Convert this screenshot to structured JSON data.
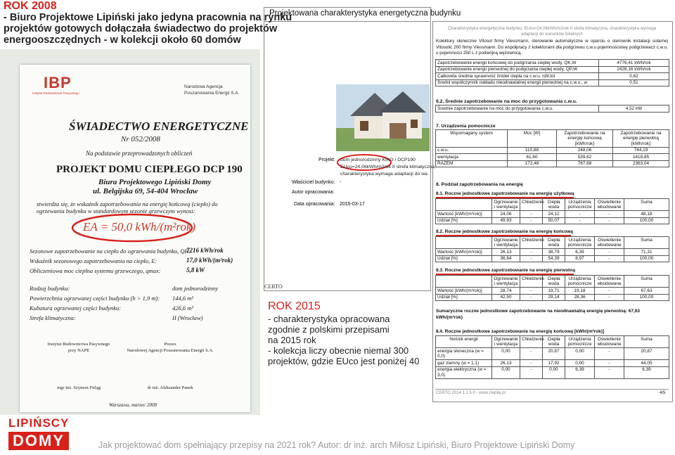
{
  "left_title": {
    "lead": "ROK 2008",
    "lines": [
      "- Biuro Projektowe Lipiński jako jedyna pracownia na rynku",
      "projektów gotowych dołączała świadectwo do projektów",
      "energooszczędnych - w kolekcji około 60 domów"
    ]
  },
  "certificate": {
    "ibp": "IBP",
    "ibp_name": "Instytut Budownictwa Pasywnego",
    "agency": [
      "Narodowa Agencja",
      "Poszanowania Energii S.A."
    ],
    "title": "ŚWIADECTWO ENERGETYCZNE",
    "number": "Nr 052/2008",
    "basis": "Na podstawie przeprowadzonych obliczeń",
    "project": "PROJEKT DOMU CIEPŁEGO DCP 190",
    "office": "Biura Projektowego Lipiński Domy",
    "address": "ul. Belgijska 69, 54-404 Wrocław",
    "statement": "stwierdza się, że wskaźnik zapotrzebowania na energię końcową (ciepło) do ogrzewania budynku w standardowym sezonie grzewczym wynosi:",
    "indicator": "EA = 50,0 kWh/(m²rok)",
    "params": [
      [
        "Sezonowe zapotrzebowanie na ciepło do ogrzewania budynku, QH:",
        "7216 kWh/rok"
      ],
      [
        "Wskaźnik sezonowego zapotrzebowania na ciepło, E:",
        "17,0 kWh/(m²rok)"
      ],
      [
        "Obliczeniowa moc cieplna systemu grzewczego, qmax:",
        "5,8 kW"
      ]
    ],
    "building": [
      [
        "Rodzaj budynku:",
        "dom jednorodzinny"
      ],
      [
        "Powierzchnia ogrzewanej części budynku (h > 1,9 m):",
        "144,6 m²"
      ],
      [
        "Kubatura ogrzewanej części budynku:",
        "426,6 m³"
      ],
      [
        "Strefa klimatyczna:",
        "II (Wrocław)"
      ]
    ],
    "signers": [
      {
        "org": [
          "Instytut Budownictwa Pasywnego",
          "przy NAPE"
        ],
        "name": "mgr inż. Szymon Firląg"
      },
      {
        "org": [
          "Prezes",
          "Narodowej Agencji Poszanowania Energii S.A."
        ],
        "name": "dr inż. Aleksander Panek"
      }
    ],
    "date": "Warszawa, marzec 2008"
  },
  "middle_doc": {
    "heading": "Projektowana charakterystyka energetyczna budynku",
    "project_label": "Projekt:",
    "project_lines": [
      "dom jednorodzinny KIKO / DCP190",
      "EUco=24,06kWh/m2rok II strefa klimatyczna,",
      "charakterystyka wymaga adaptacji do wa"
    ],
    "owner_label": "Właściciel budynku:",
    "owner_value": "-",
    "author_label": "Autor opracowania:",
    "date_label": "Data opracowania:",
    "date_value": "2015-03-17",
    "certo": "CERTO"
  },
  "rok2015": {
    "lead": "ROK 2015",
    "lines": [
      "- charakterystyka opracowana",
      "zgodnie z polskimi przepisami",
      "na 2015 rok",
      "- kolekcja liczy obecnie niemal 300",
      "projektów, gdzie EUco jest poniżej 40"
    ]
  },
  "right_doc": {
    "header": "Charakterystyka energetyczna budynku: EUco=24,06kWh/m2rok II strefa klimatyczna, charakterystyka wymaga adaptacji do warunków lokalnych",
    "intro": "Kolektory słoneczne Vitosol firmy Viessmann, sterowanie automatyczne w oparciu o sterownik instalacji solarnej Vitosolic 200 firmy Viessmann. Do współpracy z kolektorami dla podgrzewu c.w.u pojemnościowy podgrzewacz c.w.u. o pojemności 250 L z podwójną wężownicą.",
    "table1": [
      [
        "Zapotrzebowanie energii końcowej do podgrzania ciepłej wody, QK,W",
        "4776,41 kWh/rok"
      ],
      [
        "Zapotrzebowanie energii pierwotnej do podgrzania ciepłej wody, QP,W",
        "2428,16 kWh/rok"
      ],
      [
        "Całkowita średnia sprawność źródeł ciepła na c.w.u. ηW,tot",
        "0,62"
      ],
      [
        "Średni współczynnik nakładu nieodnawialnej energii pierwotnej na c.w.u., w",
        "0,51"
      ]
    ],
    "s62": {
      "title": "6.2. Średnie zapotrzebowanie na moc do przygotowania c.w.u.",
      "rows": [
        [
          "Średnie zapotrzebowanie na moc do przygotowania c.w.u.",
          "4,52 kW"
        ]
      ]
    },
    "s7": {
      "title": "7. Urządzenia pomocnicze",
      "header": [
        "Wspomagany system",
        "Moc [W]",
        "Zapotrzebowanie na energię końcową [kWh/rok]",
        "Zapotrzebowanie na energię pierwotną [kWh/rok]"
      ],
      "rows": [
        [
          "c.w.u.",
          "110,88",
          "248,06",
          "744,19"
        ],
        [
          "wentylacja",
          "61,60",
          "539,62",
          "1618,85"
        ],
        [
          "RAZEM",
          "172,48",
          "787,68",
          "2363,04"
        ]
      ]
    },
    "s8": "8. Podział zapotrzebowania na energię",
    "cols8": [
      "Ogrzewanie i wentylacja",
      "Chłodzenie",
      "Ciepła woda",
      "Urządzenia pomocnicze",
      "Oświetlenie wbudowane",
      "Suma"
    ],
    "s81": {
      "title": "8.1. Roczne jednostkowe zapotrzebowanie na energię użytkową",
      "rows": [
        [
          "Wartość [kWh/(m²rok)]",
          "24,06",
          "-",
          "24,12",
          "-",
          "-",
          "48,18"
        ],
        [
          "Udział [%]",
          "49,93",
          "-",
          "50,07",
          "-",
          "-",
          "100,00"
        ]
      ]
    },
    "s82": {
      "title": "8.2. Roczne jednostkowe zapotrzebowanie na energię końcową",
      "rows": [
        [
          "Wartość [kWh/(m²rok)]",
          "26,13",
          "-",
          "38,79",
          "6,39",
          "-",
          "71,31"
        ],
        [
          "Udział [%]",
          "36,64",
          "-",
          "54,39",
          "8,97",
          "-",
          "100,00"
        ]
      ]
    },
    "s83": {
      "title": "8.3. Roczne jednostkowe zapotrzebowanie na energię pierwotną",
      "rows": [
        [
          "Wartość [kWh/(m²rok)]",
          "28,74",
          "-",
          "19,71",
          "19,18",
          "-",
          "67,63"
        ],
        [
          "Udział [%]",
          "42,50",
          "-",
          "29,14",
          "28,36",
          "-",
          "100,00"
        ]
      ]
    },
    "summary": "Sumaryczne roczne jednostkowe zapotrzebowanie na nieodnawialną energię pierwotną: 67,63 kWh/(m²rok)",
    "s84": {
      "title": "8.4. Roczne jednostkowe zapotrzebowanie na energię końcową [kWh/(m²rok)]",
      "header": [
        "Nośnik energii",
        "Ogrzewanie i wentylacja",
        "Chłodzenie",
        "Ciepła woda",
        "Urządzenia pomocnicze",
        "Oświetlenie wbudowane",
        "Suma"
      ],
      "rows": [
        [
          "energia słoneczna (w = 0,0)",
          "0,00",
          "-",
          "20,87",
          "0,00",
          "-",
          "20,87"
        ],
        [
          "gaz ziemny (w = 1,1)",
          "26,13",
          "-",
          "17,92",
          "0,00",
          "-",
          "44,05"
        ],
        [
          "energia elektryczna (w = 3,0)",
          "0,00",
          "-",
          "0,00",
          "6,39",
          "-",
          "6,39"
        ]
      ]
    },
    "footer": "CERTO 2014 1.1.5.0 - www.cieplej.pl",
    "page": "4/5"
  },
  "logo": [
    "LIPIŃSCY",
    "DOMY"
  ],
  "footer": "Jak projektować dom spełniający przepisy na 2021 rok? Autor: dr inż. arch Miłosz Lipiński, Biuro Projektowe Lipiński Domy"
}
